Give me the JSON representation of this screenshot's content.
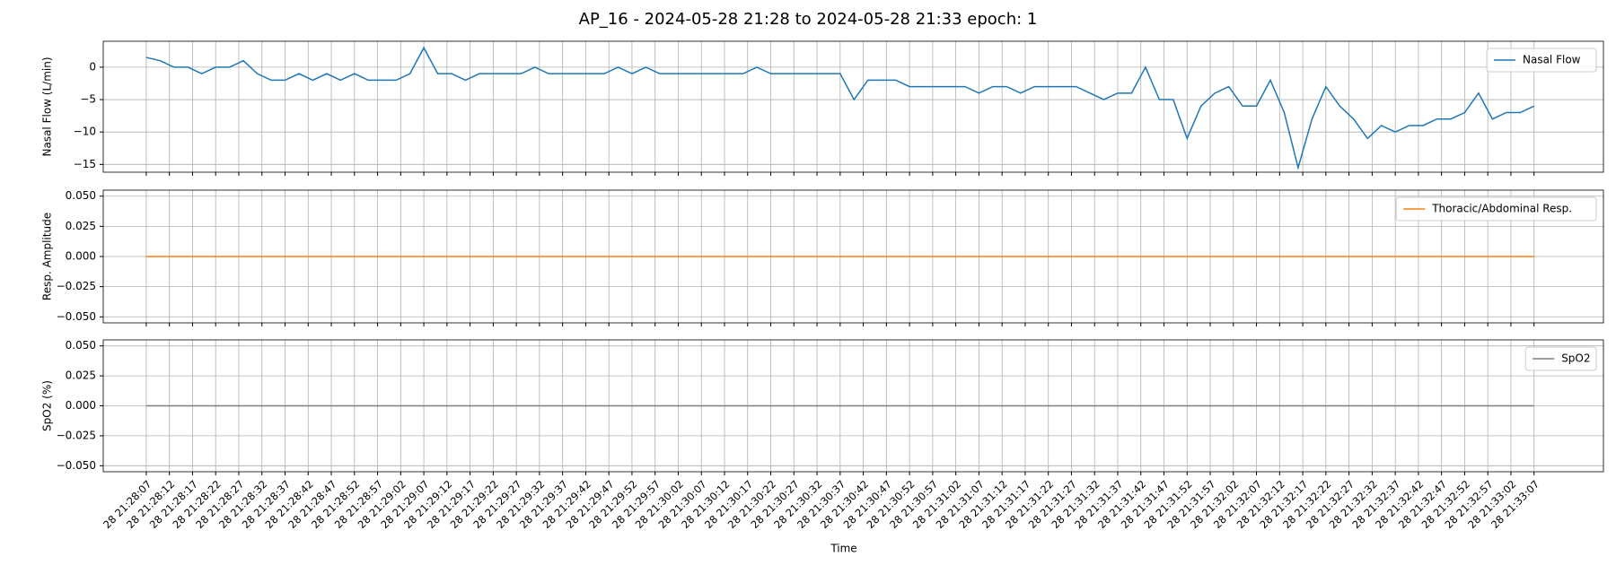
{
  "chart_data": {
    "type": "line",
    "title": "AP_16 - 2024-05-28 21:28 to 2024-05-28 21:33 epoch: 1",
    "xlabel": "Time",
    "x": [
      "28 21:28:07",
      "28 21:28:10",
      "28 21:28:13",
      "28 21:28:16",
      "28 21:28:19",
      "28 21:28:22",
      "28 21:28:25",
      "28 21:28:28",
      "28 21:28:31",
      "28 21:28:34",
      "28 21:28:37",
      "28 21:28:40",
      "28 21:28:43",
      "28 21:28:46",
      "28 21:28:49",
      "28 21:28:52",
      "28 21:28:55",
      "28 21:28:58",
      "28 21:29:01",
      "28 21:29:04",
      "28 21:29:07",
      "28 21:29:10",
      "28 21:29:13",
      "28 21:29:16",
      "28 21:29:19",
      "28 21:29:22",
      "28 21:29:25",
      "28 21:29:28",
      "28 21:29:31",
      "28 21:29:34",
      "28 21:29:37",
      "28 21:29:40",
      "28 21:29:43",
      "28 21:29:46",
      "28 21:29:49",
      "28 21:29:52",
      "28 21:29:55",
      "28 21:29:58",
      "28 21:30:01",
      "28 21:30:04",
      "28 21:30:07",
      "28 21:30:10",
      "28 21:30:13",
      "28 21:30:16",
      "28 21:30:19",
      "28 21:30:22",
      "28 21:30:25",
      "28 21:30:28",
      "28 21:30:31",
      "28 21:30:34",
      "28 21:30:37",
      "28 21:30:40",
      "28 21:30:43",
      "28 21:30:46",
      "28 21:30:49",
      "28 21:30:52",
      "28 21:30:55",
      "28 21:30:58",
      "28 21:31:01",
      "28 21:31:04",
      "28 21:31:07",
      "28 21:31:10",
      "28 21:31:13",
      "28 21:31:16",
      "28 21:31:19",
      "28 21:31:22",
      "28 21:31:25",
      "28 21:31:28",
      "28 21:31:31",
      "28 21:31:34",
      "28 21:31:37",
      "28 21:31:40",
      "28 21:31:43",
      "28 21:31:46",
      "28 21:31:49",
      "28 21:31:52",
      "28 21:31:55",
      "28 21:31:58",
      "28 21:32:01",
      "28 21:32:04",
      "28 21:32:07",
      "28 21:32:10",
      "28 21:32:13",
      "28 21:32:16",
      "28 21:32:19",
      "28 21:32:22",
      "28 21:32:25",
      "28 21:32:28",
      "28 21:32:31",
      "28 21:32:34",
      "28 21:32:37",
      "28 21:32:40",
      "28 21:32:43",
      "28 21:32:46",
      "28 21:32:49",
      "28 21:32:52",
      "28 21:32:55",
      "28 21:32:58",
      "28 21:33:01",
      "28 21:33:04",
      "28 21:33:07"
    ],
    "xticks": [
      "28 21:28:07",
      "28 21:28:12",
      "28 21:28:17",
      "28 21:28:22",
      "28 21:28:27",
      "28 21:28:32",
      "28 21:28:37",
      "28 21:28:42",
      "28 21:28:47",
      "28 21:28:52",
      "28 21:28:57",
      "28 21:29:02",
      "28 21:29:07",
      "28 21:29:12",
      "28 21:29:17",
      "28 21:29:22",
      "28 21:29:27",
      "28 21:29:32",
      "28 21:29:37",
      "28 21:29:42",
      "28 21:29:47",
      "28 21:29:52",
      "28 21:29:57",
      "28 21:30:02",
      "28 21:30:07",
      "28 21:30:12",
      "28 21:30:17",
      "28 21:30:22",
      "28 21:30:27",
      "28 21:30:32",
      "28 21:30:37",
      "28 21:30:42",
      "28 21:30:47",
      "28 21:30:52",
      "28 21:30:57",
      "28 21:31:02",
      "28 21:31:07",
      "28 21:31:12",
      "28 21:31:17",
      "28 21:31:22",
      "28 21:31:27",
      "28 21:31:32",
      "28 21:31:37",
      "28 21:31:42",
      "28 21:31:47",
      "28 21:31:52",
      "28 21:31:57",
      "28 21:32:02",
      "28 21:32:07",
      "28 21:32:12",
      "28 21:32:17",
      "28 21:32:22",
      "28 21:32:27",
      "28 21:32:32",
      "28 21:32:37",
      "28 21:32:42",
      "28 21:32:47",
      "28 21:32:52",
      "28 21:32:57",
      "28 21:33:02",
      "28 21:33:07"
    ],
    "grid": true,
    "panels": [
      {
        "ylabel": "Nasal Flow (L/min)",
        "ylim": [
          -16.2,
          4
        ],
        "yticks": [
          {
            "value": -15,
            "label": "−15"
          },
          {
            "value": -10,
            "label": "−10"
          },
          {
            "value": -5,
            "label": "−5"
          },
          0
        ],
        "legend": "upper right",
        "series": [
          {
            "name": "Nasal Flow",
            "color": "#1f77b4",
            "values": [
              1.5,
              1,
              0,
              0,
              -1,
              0,
              0,
              1,
              -1,
              -2,
              -2,
              -1,
              -2,
              -1,
              -2,
              -1,
              -2,
              -2,
              -2,
              -1,
              3,
              -1,
              -1,
              -2,
              -1,
              -1,
              -1,
              -1,
              0,
              -1,
              -1,
              -1,
              -1,
              -1,
              0,
              -1,
              0,
              -1,
              -1,
              -1,
              -1,
              -1,
              -1,
              -1,
              0,
              -1,
              -1,
              -1,
              -1,
              -1,
              -1,
              -5,
              -2,
              -2,
              -2,
              -3,
              -3,
              -3,
              -3,
              -3,
              -4,
              -3,
              -3,
              -4,
              -3,
              -3,
              -3,
              -3,
              -4,
              -5,
              -4,
              -4,
              0,
              -5,
              -5,
              -11,
              -6,
              -4,
              -3,
              -6,
              -6,
              -2,
              -7,
              -15.5,
              -8,
              -3,
              -6,
              -8,
              -11,
              -9,
              -10,
              -9,
              -9,
              -8,
              -8,
              -7,
              -4,
              -8,
              -7,
              -7,
              -6
            ]
          }
        ]
      },
      {
        "ylabel": "Resp. Amplitude",
        "ylim": [
          -0.055,
          0.055
        ],
        "yticks": [
          {
            "value": -0.05,
            "label": "−0.050"
          },
          {
            "value": -0.025,
            "label": "−0.025"
          },
          {
            "value": 0,
            "label": "0.000"
          },
          {
            "value": 0.025,
            "label": "0.025"
          },
          {
            "value": 0.05,
            "label": "0.050"
          }
        ],
        "legend": "upper right",
        "series": [
          {
            "name": "Thoracic/Abdominal Resp.",
            "color": "#ff7f0e",
            "values": [
              0,
              0,
              0,
              0,
              0,
              0,
              0,
              0,
              0,
              0,
              0,
              0,
              0,
              0,
              0,
              0,
              0,
              0,
              0,
              0,
              0,
              0,
              0,
              0,
              0,
              0,
              0,
              0,
              0,
              0,
              0,
              0,
              0,
              0,
              0,
              0,
              0,
              0,
              0,
              0,
              0,
              0,
              0,
              0,
              0,
              0,
              0,
              0,
              0,
              0,
              0,
              0,
              0,
              0,
              0,
              0,
              0,
              0,
              0,
              0,
              0,
              0,
              0,
              0,
              0,
              0,
              0,
              0,
              0,
              0,
              0,
              0,
              0,
              0,
              0,
              0,
              0,
              0,
              0,
              0,
              0,
              0,
              0,
              0,
              0,
              0,
              0,
              0,
              0,
              0,
              0,
              0,
              0,
              0,
              0,
              0,
              0,
              0,
              0,
              0,
              0
            ]
          }
        ]
      },
      {
        "ylabel": "SpO2 (%)",
        "ylim": [
          -0.055,
          0.055
        ],
        "yticks": [
          {
            "value": -0.05,
            "label": "−0.050"
          },
          {
            "value": -0.025,
            "label": "−0.025"
          },
          {
            "value": 0,
            "label": "0.000"
          },
          {
            "value": 0.025,
            "label": "0.025"
          },
          {
            "value": 0.05,
            "label": "0.050"
          }
        ],
        "legend": "upper right",
        "series": [
          {
            "name": "SpO2",
            "color": "#7f7f7f",
            "values": [
              0,
              0,
              0,
              0,
              0,
              0,
              0,
              0,
              0,
              0,
              0,
              0,
              0,
              0,
              0,
              0,
              0,
              0,
              0,
              0,
              0,
              0,
              0,
              0,
              0,
              0,
              0,
              0,
              0,
              0,
              0,
              0,
              0,
              0,
              0,
              0,
              0,
              0,
              0,
              0,
              0,
              0,
              0,
              0,
              0,
              0,
              0,
              0,
              0,
              0,
              0,
              0,
              0,
              0,
              0,
              0,
              0,
              0,
              0,
              0,
              0,
              0,
              0,
              0,
              0,
              0,
              0,
              0,
              0,
              0,
              0,
              0,
              0,
              0,
              0,
              0,
              0,
              0,
              0,
              0,
              0,
              0,
              0,
              0,
              0,
              0,
              0,
              0,
              0,
              0,
              0,
              0,
              0,
              0,
              0,
              0,
              0,
              0,
              0,
              0,
              0
            ]
          }
        ]
      }
    ]
  }
}
